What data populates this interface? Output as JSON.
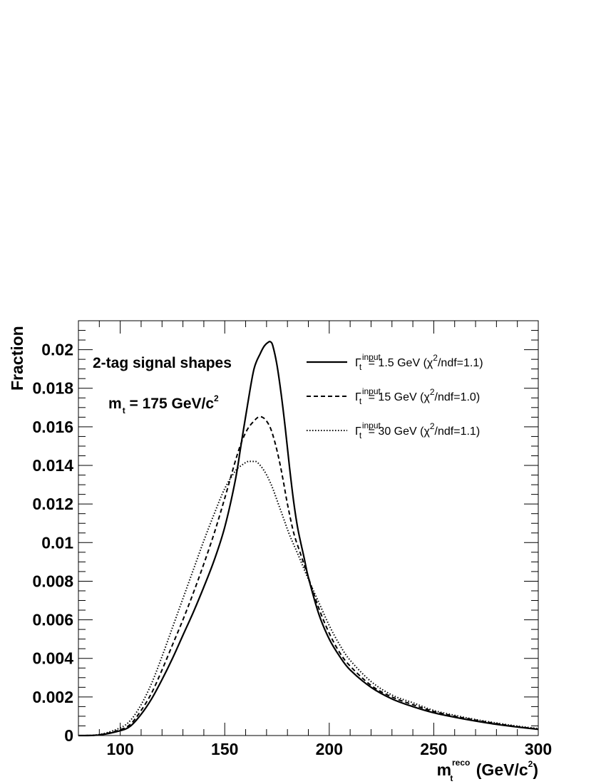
{
  "chart_data": {
    "type": "line",
    "ylabel": "Fraction",
    "xlabel": {
      "base": "m",
      "sub": "t",
      "sup": "reco",
      "unit_prefix": " (GeV/c",
      "unit_sup": "2",
      "unit_suffix": ")"
    },
    "xlim": [
      80,
      300
    ],
    "ylim": [
      0,
      0.0215
    ],
    "x_ticks": [
      100,
      150,
      200,
      250,
      300
    ],
    "x_tick_labels": [
      "100",
      "150",
      "200",
      "250",
      "300"
    ],
    "y_ticks": [
      0,
      0.002,
      0.004,
      0.006,
      0.008,
      0.01,
      0.012,
      0.014,
      0.016,
      0.018,
      0.02
    ],
    "y_tick_labels": [
      "0",
      "0.002",
      "0.004",
      "0.006",
      "0.008",
      "0.01",
      "0.012",
      "0.014",
      "0.016",
      "0.018",
      "0.02"
    ],
    "grid": false,
    "legend_position": "top-right",
    "annotations": {
      "title": "2-tag signal shapes",
      "mass": {
        "base": "m",
        "sub": "t",
        "mid": " = 175 GeV/c",
        "sup": "2"
      }
    },
    "series": [
      {
        "name": "Γ_t^input = 1.5 GeV (χ²/ndf=1.1)",
        "legend": {
          "prefix": "Γ",
          "sup": "input",
          "sub": "t",
          "middle": " = 1.5 GeV (χ",
          "sup2": "2",
          "suffix": "/ndf=1.1)"
        },
        "style": "solid",
        "x": [
          80,
          90,
          100,
          105,
          110,
          115,
          120,
          125,
          130,
          135,
          140,
          145,
          150,
          155,
          158,
          161,
          164,
          167,
          169,
          171,
          172,
          173,
          175,
          177,
          179,
          181,
          183,
          185,
          188,
          190,
          195,
          200,
          205,
          210,
          220,
          230,
          240,
          250,
          260,
          270,
          280,
          290,
          300
        ],
        "y": [
          0.0,
          3e-05,
          0.00025,
          0.0005,
          0.0011,
          0.0019,
          0.0029,
          0.004,
          0.0052,
          0.0064,
          0.0077,
          0.0091,
          0.0108,
          0.0132,
          0.0152,
          0.0172,
          0.019,
          0.0198,
          0.0202,
          0.0204,
          0.0204,
          0.0202,
          0.0192,
          0.0177,
          0.0159,
          0.0139,
          0.0121,
          0.0107,
          0.0092,
          0.0082,
          0.0063,
          0.005,
          0.0041,
          0.0034,
          0.0025,
          0.0019,
          0.0015,
          0.00118,
          0.00095,
          0.00075,
          0.00058,
          0.00044,
          0.00032
        ]
      },
      {
        "name": "Γ_t^input = 15 GeV (χ²/ndf=1.0)",
        "legend": {
          "prefix": "Γ",
          "sup": "input",
          "sub": "t",
          "middle": " = 15 GeV (χ",
          "sup2": "2",
          "suffix": "/ndf=1.0)"
        },
        "style": "dashed",
        "x": [
          80,
          90,
          100,
          105,
          110,
          115,
          120,
          125,
          130,
          135,
          140,
          145,
          150,
          155,
          158,
          161,
          164,
          166,
          168,
          170,
          172,
          174,
          176,
          178,
          180,
          183,
          186,
          190,
          195,
          200,
          205,
          210,
          220,
          230,
          240,
          250,
          260,
          270,
          280,
          290,
          300
        ],
        "y": [
          0.0,
          4e-05,
          0.0003,
          0.0006,
          0.0013,
          0.0022,
          0.0034,
          0.0047,
          0.006,
          0.0074,
          0.0089,
          0.0105,
          0.0123,
          0.0142,
          0.0152,
          0.0159,
          0.0163,
          0.0165,
          0.0165,
          0.0163,
          0.0159,
          0.0152,
          0.0143,
          0.0132,
          0.012,
          0.0105,
          0.0095,
          0.0082,
          0.0066,
          0.0053,
          0.0043,
          0.0036,
          0.0026,
          0.002,
          0.0016,
          0.00125,
          0.001,
          0.0008,
          0.00062,
          0.00046,
          0.00034
        ]
      },
      {
        "name": "Γ_t^input = 30 GeV (χ²/ndf=1.1)",
        "legend": {
          "prefix": "Γ",
          "sup": "input",
          "sub": "t",
          "middle": " = 30 GeV (χ",
          "sup2": "2",
          "suffix": "/ndf=1.1)"
        },
        "style": "dotted",
        "x": [
          80,
          90,
          100,
          105,
          110,
          115,
          120,
          125,
          130,
          135,
          140,
          145,
          150,
          155,
          158,
          161,
          163,
          165,
          167,
          169,
          171,
          173,
          175,
          178,
          181,
          185,
          190,
          195,
          200,
          205,
          210,
          220,
          230,
          240,
          250,
          260,
          270,
          280,
          290,
          300
        ],
        "y": [
          0.0,
          5e-05,
          0.0004,
          0.0008,
          0.0016,
          0.0027,
          0.0041,
          0.0056,
          0.0071,
          0.0086,
          0.0101,
          0.0115,
          0.0128,
          0.0137,
          0.014,
          0.0142,
          0.0142,
          0.0142,
          0.014,
          0.0137,
          0.0133,
          0.0128,
          0.0122,
          0.0113,
          0.0104,
          0.0094,
          0.0081,
          0.0069,
          0.0057,
          0.0047,
          0.0039,
          0.0028,
          0.0021,
          0.0017,
          0.0013,
          0.00105,
          0.00083,
          0.00065,
          0.00049,
          0.00036
        ]
      }
    ]
  }
}
